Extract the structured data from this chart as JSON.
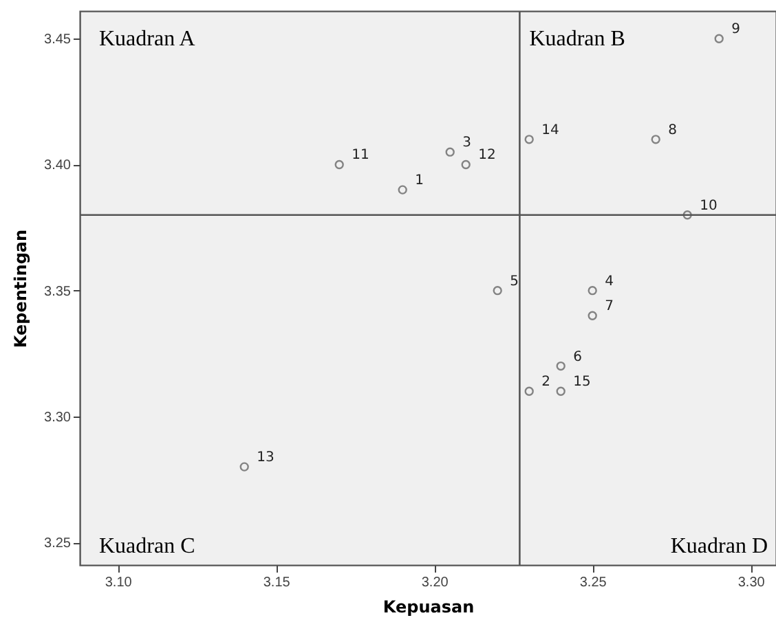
{
  "chart_data": {
    "type": "scatter",
    "xlabel": "Kepuasan",
    "ylabel": "Kepentingan",
    "x": [
      3.19,
      3.23,
      3.205,
      3.25,
      3.22,
      3.24,
      3.25,
      3.27,
      3.29,
      3.28,
      3.17,
      3.21,
      3.14,
      3.23,
      3.24
    ],
    "series": [
      {
        "color": "#555555",
        "values": [
          3.39,
          3.31,
          3.405,
          3.35,
          3.35,
          3.32,
          3.34,
          3.41,
          3.45,
          3.38,
          3.4,
          3.4,
          3.28,
          3.41,
          3.31
        ]
      }
    ],
    "marker": "circle",
    "grid": false,
    "xlim": [
      3.088,
      3.308
    ],
    "xticks": [
      {
        "value": 3.1,
        "label": "3.10"
      },
      {
        "value": 3.15,
        "label": "3.15"
      },
      {
        "value": 3.2,
        "label": "3.20"
      },
      {
        "value": 3.25,
        "label": "3.25"
      },
      {
        "value": 3.3,
        "label": "3.30"
      }
    ],
    "ylim": [
      3.241,
      3.461
    ],
    "yticks": [
      {
        "value": 3.25,
        "label": "3.25"
      },
      {
        "value": 3.3,
        "label": "3.30"
      },
      {
        "value": 3.35,
        "label": "3.35"
      },
      {
        "value": 3.4,
        "label": "3.40"
      },
      {
        "value": 3.45,
        "label": "3.45"
      }
    ],
    "ref_lines": [
      {
        "axis": "x",
        "value": 3.227,
        "color": "#555555"
      },
      {
        "axis": "y",
        "value": 3.38,
        "color": "#555555"
      }
    ],
    "annotations": [
      "Kuadran A",
      "Kuadran B",
      "Kuadran C",
      "Kuadran D",
      {
        "text": "1",
        "x": 3.19,
        "y": 3.39
      },
      {
        "text": "2",
        "x": 3.23,
        "y": 3.31
      },
      {
        "text": "3",
        "x": 3.205,
        "y": 3.405
      },
      {
        "text": "4",
        "x": 3.25,
        "y": 3.35
      },
      {
        "text": "5",
        "x": 3.22,
        "y": 3.35
      },
      {
        "text": "6",
        "x": 3.24,
        "y": 3.32
      },
      {
        "text": "7",
        "x": 3.25,
        "y": 3.34
      },
      {
        "text": "8",
        "x": 3.27,
        "y": 3.41
      },
      {
        "text": "9",
        "x": 3.29,
        "y": 3.45
      },
      {
        "text": "10",
        "x": 3.28,
        "y": 3.38
      },
      {
        "text": "11",
        "x": 3.17,
        "y": 3.4
      },
      {
        "text": "12",
        "x": 3.21,
        "y": 3.4
      },
      {
        "text": "13",
        "x": 3.14,
        "y": 3.28
      },
      {
        "text": "14",
        "x": 3.23,
        "y": 3.41
      },
      {
        "text": "15",
        "x": 3.24,
        "y": 3.31
      }
    ]
  }
}
